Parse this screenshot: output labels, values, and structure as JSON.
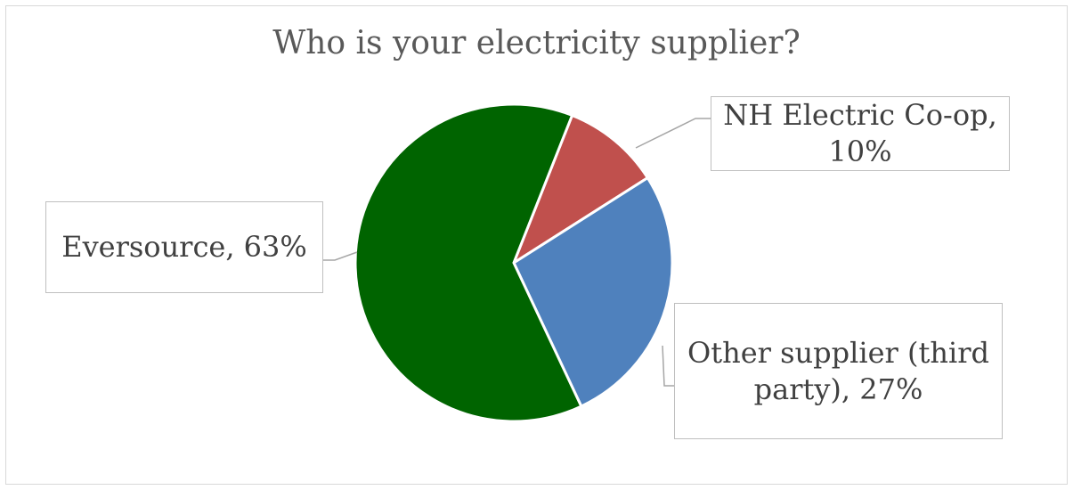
{
  "chart_data": {
    "type": "pie",
    "title": "Who is your electricity supplier?",
    "slices": [
      {
        "label": "Eversource",
        "value": 63,
        "display": "Eversource, 63%",
        "color": "#006400"
      },
      {
        "label": "NH Electric Co-op",
        "value": 10,
        "display": "NH Electric Co-op, 10%",
        "color": "#c0504d"
      },
      {
        "label": "Other supplier (third party)",
        "value": 27,
        "display": "Other supplier (third party), 27%",
        "color": "#4f81bd"
      }
    ],
    "legend": "none"
  }
}
